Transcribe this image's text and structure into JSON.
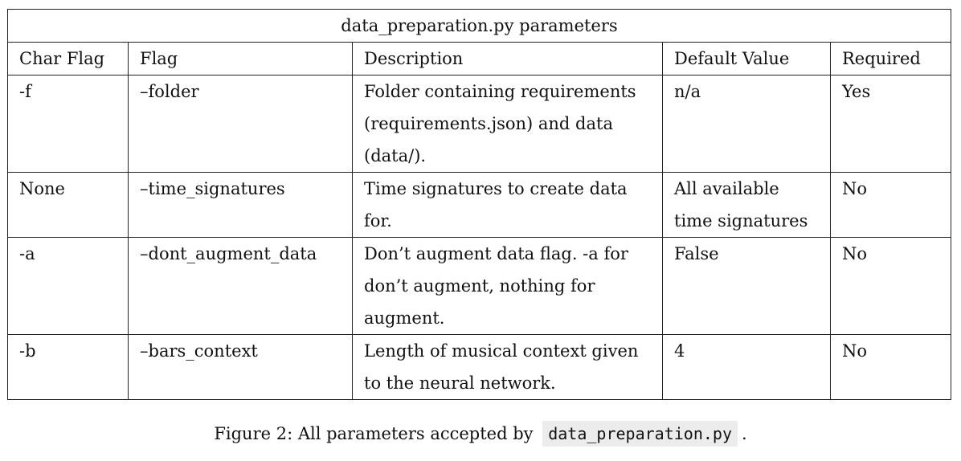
{
  "table": {
    "title": "data_preparation.py parameters",
    "headers": [
      "Char Flag",
      "Flag",
      "Description",
      "Default Value",
      "Required"
    ],
    "rows": [
      {
        "char_flag": "-f",
        "flag": "–folder",
        "description": "Folder containing requirements (requirements.json) and data (data/).",
        "default_value": "n/a",
        "required": "Yes"
      },
      {
        "char_flag": "None",
        "flag": "–time_signatures",
        "description": "Time signatures to create data for.",
        "default_value": "All available time signatures",
        "required": "No"
      },
      {
        "char_flag": "-a",
        "flag": "–dont_augment_data",
        "description": "Don’t augment data flag. -a for don’t augment, nothing for augment.",
        "default_value": "False",
        "required": "No"
      },
      {
        "char_flag": "-b",
        "flag": "–bars_context",
        "description": "Length of musical context given to the neural network.",
        "default_value": "4",
        "required": "No"
      }
    ]
  },
  "figure_caption": {
    "prefix": "Figure 2: All parameters accepted by",
    "code": "data_preparation.py",
    "suffix": "."
  }
}
